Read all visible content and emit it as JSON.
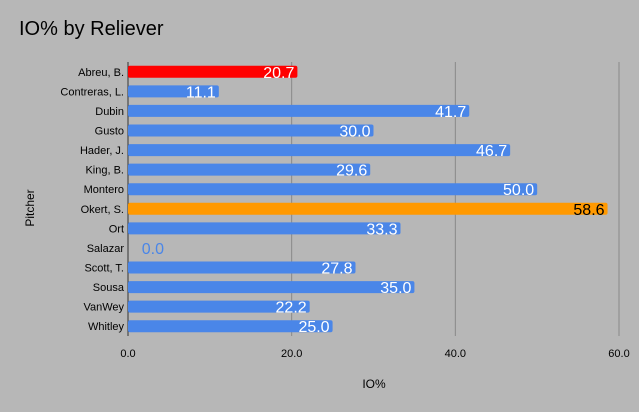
{
  "chart_data": {
    "type": "bar",
    "orientation": "horizontal",
    "title": "IO% by Reliever",
    "xlabel": "IO%",
    "ylabel": "Pitcher",
    "xlim": [
      0,
      60
    ],
    "xticks": [
      "0.0",
      "20.0",
      "40.0",
      "60.0"
    ],
    "grid": true,
    "categories": [
      "Abreu, B.",
      "Contreras, L.",
      "Dubin",
      "Gusto",
      "Hader, J.",
      "King, B.",
      "Montero",
      "Okert, S.",
      "Ort",
      "Salazar",
      "Scott, T.",
      "Sousa",
      "VanWey",
      "Whitley"
    ],
    "values": [
      20.7,
      11.1,
      41.7,
      30.0,
      46.7,
      29.6,
      50.0,
      58.6,
      33.3,
      0.0,
      27.8,
      35.0,
      22.2,
      25.0
    ],
    "labels": [
      "20.7",
      "11.1",
      "41.7",
      "30.0",
      "46.7",
      "29.6",
      "50.0",
      "58.6",
      "33.3",
      "0.0",
      "27.8",
      "35.0",
      "22.2",
      "25.0"
    ],
    "colors": [
      "#ff0000",
      "#4a86e8",
      "#4a86e8",
      "#4a86e8",
      "#4a86e8",
      "#4a86e8",
      "#4a86e8",
      "#ff9900",
      "#4a86e8",
      "#4a86e8",
      "#4a86e8",
      "#4a86e8",
      "#4a86e8",
      "#4a86e8"
    ],
    "label_colors": [
      "#ffffff",
      "#ffffff",
      "#ffffff",
      "#ffffff",
      "#ffffff",
      "#ffffff",
      "#ffffff",
      "#000000",
      "#ffffff",
      "#4a86e8",
      "#ffffff",
      "#ffffff",
      "#ffffff",
      "#ffffff"
    ],
    "gridline_color": "#888888"
  }
}
